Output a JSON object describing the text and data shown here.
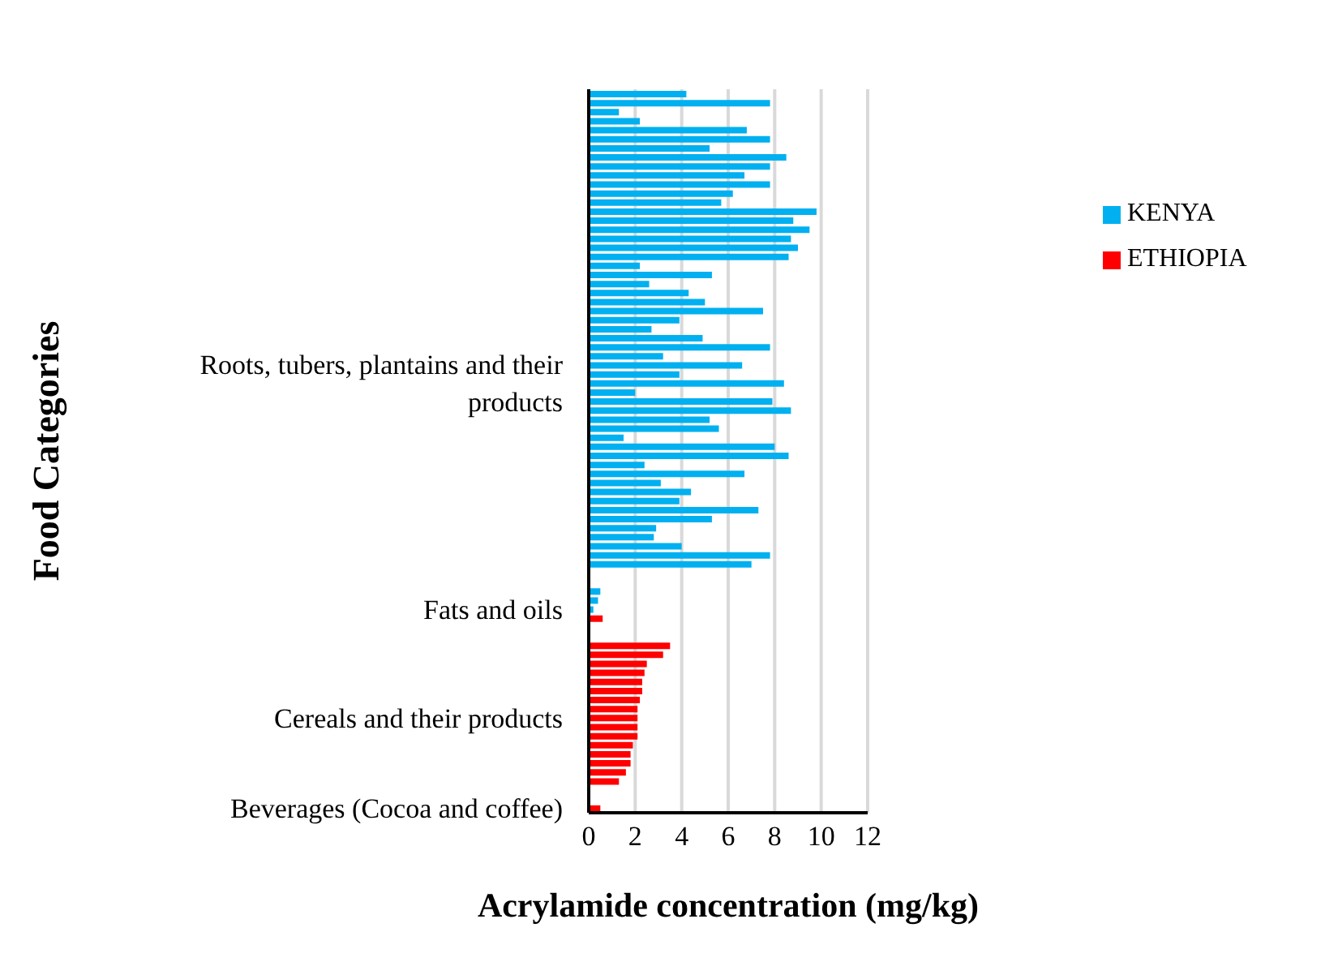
{
  "chart_data": {
    "type": "bar",
    "orientation": "horizontal",
    "xlabel": "Acrylamide concentration (mg/kg)",
    "ylabel": "Food Categories",
    "categories": [
      null,
      null,
      null,
      null,
      null,
      null,
      null,
      null,
      null,
      null,
      null,
      null,
      null,
      null,
      null,
      null,
      null,
      null,
      null,
      null,
      null,
      null,
      null,
      null,
      null,
      null,
      null,
      null,
      null,
      null,
      null,
      null,
      "Roots, tubers, plantains and their products",
      null,
      null,
      null,
      null,
      null,
      null,
      null,
      null,
      null,
      null,
      null,
      null,
      null,
      null,
      null,
      null,
      null,
      null,
      null,
      null,
      null,
      null,
      null,
      null,
      "Fats and oils",
      null,
      null,
      null,
      null,
      null,
      null,
      null,
      null,
      null,
      null,
      null,
      "Cereals and their products",
      null,
      null,
      null,
      null,
      null,
      null,
      null,
      null,
      null,
      "Beverages (Cocoa and coffee)"
    ],
    "series": [
      {
        "name": "KENYA",
        "color": "#00b0f0",
        "values": [
          4.2,
          7.8,
          1.3,
          2.2,
          6.8,
          7.8,
          5.2,
          8.5,
          7.8,
          6.7,
          7.8,
          6.2,
          5.7,
          9.8,
          8.8,
          9.5,
          8.7,
          9.0,
          8.6,
          2.2,
          5.3,
          2.6,
          4.3,
          5.0,
          7.5,
          3.9,
          2.7,
          4.9,
          7.8,
          3.2,
          6.6,
          3.9,
          8.4,
          2.0,
          7.9,
          8.7,
          5.2,
          5.6,
          1.5,
          8.0,
          8.6,
          2.4,
          6.7,
          3.1,
          4.4,
          3.9,
          7.3,
          5.3,
          2.9,
          2.8,
          4.0,
          7.8,
          7.0,
          null,
          null,
          0.5,
          0.4,
          0.2,
          null,
          null,
          null,
          null,
          null,
          null,
          null,
          null,
          null,
          null,
          null,
          null,
          null,
          null,
          null,
          null,
          null,
          null,
          null,
          null,
          null,
          null
        ]
      },
      {
        "name": "ETHIOPIA",
        "color": "#ff0000",
        "values": [
          null,
          null,
          null,
          null,
          null,
          null,
          null,
          null,
          null,
          null,
          null,
          null,
          null,
          null,
          null,
          null,
          null,
          null,
          null,
          null,
          null,
          null,
          null,
          null,
          null,
          null,
          null,
          null,
          null,
          null,
          null,
          null,
          null,
          null,
          null,
          null,
          null,
          null,
          null,
          null,
          null,
          null,
          null,
          null,
          null,
          null,
          null,
          null,
          null,
          null,
          null,
          null,
          null,
          null,
          null,
          null,
          null,
          null,
          0.6,
          null,
          null,
          3.5,
          3.2,
          2.5,
          2.4,
          2.3,
          2.3,
          2.2,
          2.1,
          2.1,
          2.1,
          2.1,
          1.9,
          1.8,
          1.8,
          1.6,
          1.3,
          null,
          null,
          0.5
        ]
      }
    ],
    "xlim": [
      0,
      12
    ],
    "xticks": [
      0,
      2,
      4,
      6,
      8,
      10,
      12
    ],
    "grid": "x",
    "legend": "right"
  }
}
